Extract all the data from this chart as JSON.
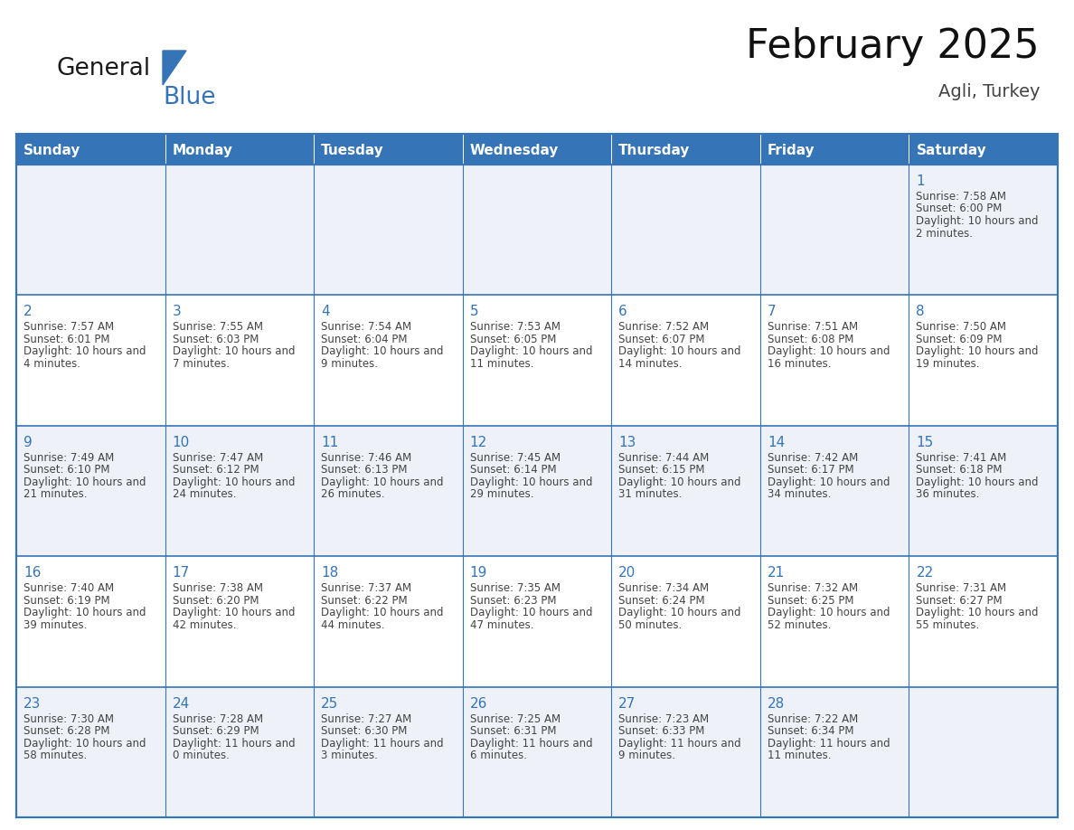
{
  "title": "February 2025",
  "subtitle": "Agli, Turkey",
  "header_bg": "#3474B7",
  "header_text_color": "#FFFFFF",
  "cell_bg_even": "#EEF2F8",
  "cell_bg_odd": "#FFFFFF",
  "border_color": "#3474B7",
  "text_color_dark": "#444444",
  "day_number_color": "#3474B7",
  "weekdays": [
    "Sunday",
    "Monday",
    "Tuesday",
    "Wednesday",
    "Thursday",
    "Friday",
    "Saturday"
  ],
  "days": [
    {
      "day": 1,
      "col": 6,
      "row": 0,
      "sunrise": "7:58 AM",
      "sunset": "6:00 PM",
      "daylight": "10 hours and 2 minutes."
    },
    {
      "day": 2,
      "col": 0,
      "row": 1,
      "sunrise": "7:57 AM",
      "sunset": "6:01 PM",
      "daylight": "10 hours and 4 minutes."
    },
    {
      "day": 3,
      "col": 1,
      "row": 1,
      "sunrise": "7:55 AM",
      "sunset": "6:03 PM",
      "daylight": "10 hours and 7 minutes."
    },
    {
      "day": 4,
      "col": 2,
      "row": 1,
      "sunrise": "7:54 AM",
      "sunset": "6:04 PM",
      "daylight": "10 hours and 9 minutes."
    },
    {
      "day": 5,
      "col": 3,
      "row": 1,
      "sunrise": "7:53 AM",
      "sunset": "6:05 PM",
      "daylight": "10 hours and 11 minutes."
    },
    {
      "day": 6,
      "col": 4,
      "row": 1,
      "sunrise": "7:52 AM",
      "sunset": "6:07 PM",
      "daylight": "10 hours and 14 minutes."
    },
    {
      "day": 7,
      "col": 5,
      "row": 1,
      "sunrise": "7:51 AM",
      "sunset": "6:08 PM",
      "daylight": "10 hours and 16 minutes."
    },
    {
      "day": 8,
      "col": 6,
      "row": 1,
      "sunrise": "7:50 AM",
      "sunset": "6:09 PM",
      "daylight": "10 hours and 19 minutes."
    },
    {
      "day": 9,
      "col": 0,
      "row": 2,
      "sunrise": "7:49 AM",
      "sunset": "6:10 PM",
      "daylight": "10 hours and 21 minutes."
    },
    {
      "day": 10,
      "col": 1,
      "row": 2,
      "sunrise": "7:47 AM",
      "sunset": "6:12 PM",
      "daylight": "10 hours and 24 minutes."
    },
    {
      "day": 11,
      "col": 2,
      "row": 2,
      "sunrise": "7:46 AM",
      "sunset": "6:13 PM",
      "daylight": "10 hours and 26 minutes."
    },
    {
      "day": 12,
      "col": 3,
      "row": 2,
      "sunrise": "7:45 AM",
      "sunset": "6:14 PM",
      "daylight": "10 hours and 29 minutes."
    },
    {
      "day": 13,
      "col": 4,
      "row": 2,
      "sunrise": "7:44 AM",
      "sunset": "6:15 PM",
      "daylight": "10 hours and 31 minutes."
    },
    {
      "day": 14,
      "col": 5,
      "row": 2,
      "sunrise": "7:42 AM",
      "sunset": "6:17 PM",
      "daylight": "10 hours and 34 minutes."
    },
    {
      "day": 15,
      "col": 6,
      "row": 2,
      "sunrise": "7:41 AM",
      "sunset": "6:18 PM",
      "daylight": "10 hours and 36 minutes."
    },
    {
      "day": 16,
      "col": 0,
      "row": 3,
      "sunrise": "7:40 AM",
      "sunset": "6:19 PM",
      "daylight": "10 hours and 39 minutes."
    },
    {
      "day": 17,
      "col": 1,
      "row": 3,
      "sunrise": "7:38 AM",
      "sunset": "6:20 PM",
      "daylight": "10 hours and 42 minutes."
    },
    {
      "day": 18,
      "col": 2,
      "row": 3,
      "sunrise": "7:37 AM",
      "sunset": "6:22 PM",
      "daylight": "10 hours and 44 minutes."
    },
    {
      "day": 19,
      "col": 3,
      "row": 3,
      "sunrise": "7:35 AM",
      "sunset": "6:23 PM",
      "daylight": "10 hours and 47 minutes."
    },
    {
      "day": 20,
      "col": 4,
      "row": 3,
      "sunrise": "7:34 AM",
      "sunset": "6:24 PM",
      "daylight": "10 hours and 50 minutes."
    },
    {
      "day": 21,
      "col": 5,
      "row": 3,
      "sunrise": "7:32 AM",
      "sunset": "6:25 PM",
      "daylight": "10 hours and 52 minutes."
    },
    {
      "day": 22,
      "col": 6,
      "row": 3,
      "sunrise": "7:31 AM",
      "sunset": "6:27 PM",
      "daylight": "10 hours and 55 minutes."
    },
    {
      "day": 23,
      "col": 0,
      "row": 4,
      "sunrise": "7:30 AM",
      "sunset": "6:28 PM",
      "daylight": "10 hours and 58 minutes."
    },
    {
      "day": 24,
      "col": 1,
      "row": 4,
      "sunrise": "7:28 AM",
      "sunset": "6:29 PM",
      "daylight": "11 hours and 0 minutes."
    },
    {
      "day": 25,
      "col": 2,
      "row": 4,
      "sunrise": "7:27 AM",
      "sunset": "6:30 PM",
      "daylight": "11 hours and 3 minutes."
    },
    {
      "day": 26,
      "col": 3,
      "row": 4,
      "sunrise": "7:25 AM",
      "sunset": "6:31 PM",
      "daylight": "11 hours and 6 minutes."
    },
    {
      "day": 27,
      "col": 4,
      "row": 4,
      "sunrise": "7:23 AM",
      "sunset": "6:33 PM",
      "daylight": "11 hours and 9 minutes."
    },
    {
      "day": 28,
      "col": 5,
      "row": 4,
      "sunrise": "7:22 AM",
      "sunset": "6:34 PM",
      "daylight": "11 hours and 11 minutes."
    }
  ],
  "num_rows": 5,
  "num_cols": 7,
  "logo_text1": "General",
  "logo_text2": "Blue",
  "logo_triangle_color": "#3474B7",
  "title_fontsize": 32,
  "subtitle_fontsize": 14,
  "header_fontsize": 11,
  "day_num_fontsize": 11,
  "cell_text_fontsize": 8.5
}
